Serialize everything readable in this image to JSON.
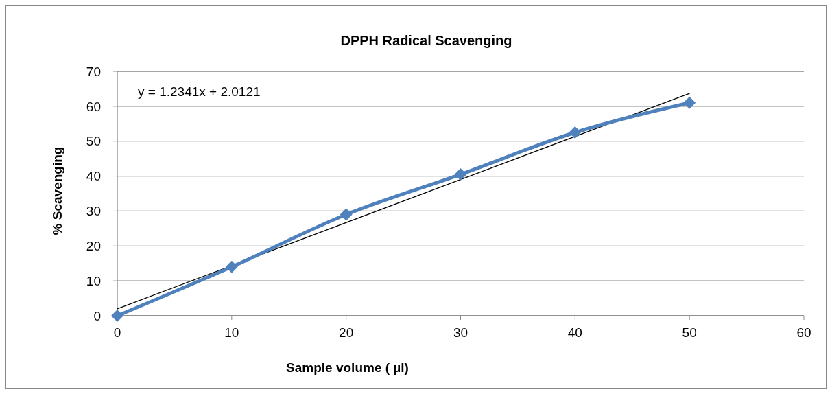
{
  "chart_data": {
    "type": "line",
    "title": "DPPH Radical Scavenging",
    "xlabel": "Sample volume (     µl)",
    "ylabel": "% Scavenging",
    "x": [
      0,
      10,
      20,
      30,
      40,
      50
    ],
    "series": [
      {
        "color": "#4f81bd",
        "values": [
          0,
          14,
          29,
          40.5,
          52.5,
          61
        ],
        "marker": "diamond"
      },
      {
        "type": "line",
        "x": [
          0,
          50
        ],
        "values": [
          2,
          63.7
        ],
        "color": "#000000",
        "marker": "none"
      }
    ],
    "xlim": [
      0,
      60
    ],
    "xticks": [
      0,
      10,
      20,
      30,
      40,
      50,
      60
    ],
    "ylim": [
      0,
      70
    ],
    "yticks": [
      0,
      10,
      20,
      30,
      40,
      50,
      60,
      70
    ],
    "grid": "y",
    "annotations": [
      "y = 1.2341x + 2.0121"
    ]
  }
}
